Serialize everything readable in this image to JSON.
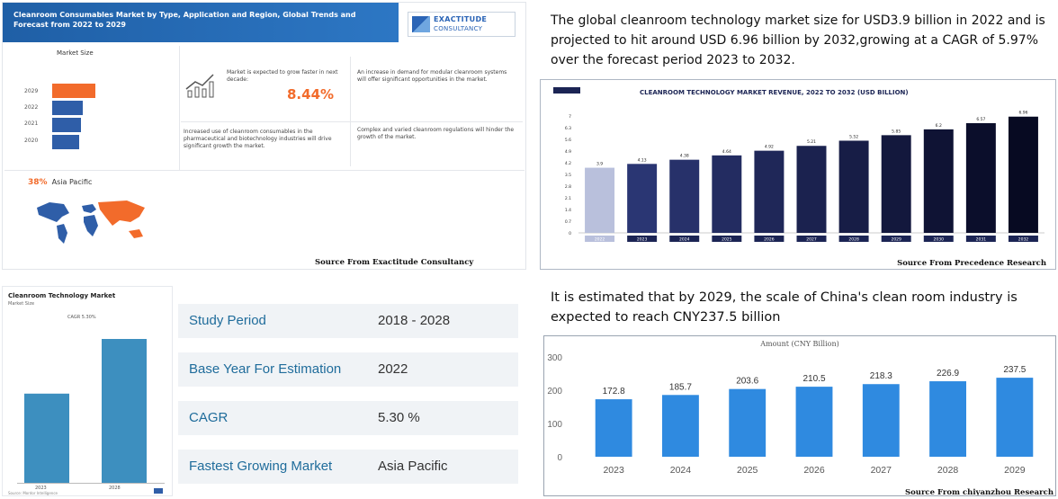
{
  "infographic": {
    "title": "Cleanroom Consumables Market by Type, Application and Region, Global Trends and Forecast from 2022 to 2029",
    "logo_line1": "EXACTITUDE",
    "logo_line2": "CONSULTANCY",
    "market_size_label": "Market Size",
    "years": [
      "2029",
      "2022",
      "2021",
      "2020"
    ],
    "bar_colors": [
      "#f26b2b",
      "#2f5ea8",
      "#2f5ea8",
      "#2f5ea8"
    ],
    "text_growth": "Market is expected to grow faster in next decade:",
    "growth_pct": "8.44%",
    "text_modular": "An increase in demand for modular cleanroom systems will offer significant opportunities in the market.",
    "text_pharma": "Increased use of cleanroom consumables in the pharmaceutical and biotechnology industries will drive significant growth the market.",
    "text_regulations": "Complex and varied cleanroom regulations will hinder the growth of the market.",
    "region_pct": "38%",
    "region_name": "Asia Pacific",
    "source": "Source From Exactitude Consultancy"
  },
  "headline1": "The global cleanroom technology market size for USD3.9 billion in 2022 and is projected to hit around USD 6.96 billion by 2032,growing at a CAGR of 5.97% over the forecast period 2023 to 2032.",
  "chart2_source": "Source From Precedence Research",
  "study": {
    "title": "Cleanroom Technology Market",
    "subtitle": "Market Size",
    "cagr_label": "CAGR 5.30%",
    "years": [
      "2023",
      "2028"
    ],
    "footer": "Source: Mordor Intelligence",
    "rows": [
      {
        "key": "Study Period",
        "value": "2018 - 2028"
      },
      {
        "key": "Base Year For Estimation",
        "value": "2022"
      },
      {
        "key": "CAGR",
        "value": "5.30 %"
      },
      {
        "key": "Fastest Growing Market",
        "value": "Asia Pacific"
      }
    ]
  },
  "headline2": "It is estimated that by 2029, the scale of China's clean room industry is expected to reach CNY237.5 billion",
  "chart4_source": "Source From chiyanzhou Research",
  "chart_data": [
    {
      "type": "bar",
      "title": "CLEANROOM TECHNOLOGY MARKET REVENUE, 2022 TO 2032 (USD BILLION)",
      "categories": [
        "2022",
        "2023",
        "2024",
        "2025",
        "2026",
        "2027",
        "2028",
        "2029",
        "2030",
        "2031",
        "2032"
      ],
      "values": [
        3.9,
        4.13,
        4.38,
        4.64,
        4.92,
        5.21,
        5.52,
        5.85,
        6.2,
        6.57,
        6.96
      ],
      "ylim": [
        0,
        7
      ],
      "yticks": [
        "0",
        "0.7",
        "1.4",
        "2.1",
        "2.8",
        "3.5",
        "4.2",
        "4.9",
        "5.6",
        "6.3",
        "7"
      ],
      "colors": [
        "#b9c0dc",
        "#2a3673",
        "#27316a",
        "#232c61",
        "#1f2758",
        "#1b224f",
        "#171d46",
        "#13183d",
        "#0f1334",
        "#0b0e2b",
        "#070a22"
      ]
    },
    {
      "type": "bar",
      "title": "Amount (CNY Billion)",
      "categories": [
        "2023",
        "2024",
        "2025",
        "2026",
        "2027",
        "2028",
        "2029"
      ],
      "values": [
        172.8,
        185.7,
        203.6,
        210.5,
        218.3,
        226.9,
        237.5
      ],
      "ylim": [
        0,
        300
      ],
      "yticks": [
        "0",
        "100",
        "200",
        "300"
      ],
      "color": "#2f8ae0"
    },
    {
      "type": "bar",
      "title": "Cleanroom Technology Market",
      "categories": [
        "2023",
        "2028"
      ],
      "relative_values": [
        0.62,
        1.0
      ],
      "color": "#3d8fbf"
    }
  ]
}
